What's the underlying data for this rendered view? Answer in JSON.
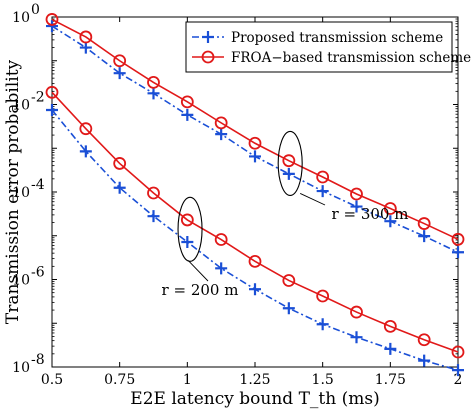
{
  "chart_data": {
    "type": "line",
    "xlabel": "E2E latency bound T_th (ms)",
    "ylabel": "Transmission error probability",
    "xlim": [
      0.5,
      2
    ],
    "ylim": [
      1e-08,
      1
    ],
    "yscale": "log",
    "grid": false,
    "legend_position": "top-right",
    "x_ticks": [
      "0.5",
      "0.75",
      "1",
      "1.25",
      "1.5",
      "1.75",
      "2"
    ],
    "y_ticks": [
      {
        "base": "10",
        "exp": "0"
      },
      {
        "base": "10",
        "exp": "-2"
      },
      {
        "base": "10",
        "exp": "-4"
      },
      {
        "base": "10",
        "exp": "-6"
      },
      {
        "base": "10",
        "exp": "-8"
      }
    ],
    "x": [
      0.5,
      0.625,
      0.75,
      0.875,
      1.0,
      1.125,
      1.25,
      1.375,
      1.5,
      1.625,
      1.75,
      1.875,
      2.0
    ],
    "series": [
      {
        "name": "Proposed transmission scheme",
        "group": "r = 300 m",
        "style": "proposed",
        "color": "#1a4fd6",
        "values": [
          0.62,
          0.2,
          0.052,
          0.018,
          0.0058,
          0.0021,
          0.00065,
          0.00026,
          0.000105,
          4.65e-05,
          2.15e-05,
          9.8e-06,
          4.2e-06
        ]
      },
      {
        "name": "FROA−based transmission scheme",
        "group": "r = 300 m",
        "style": "froa",
        "color": "#e11919",
        "values": [
          0.88,
          0.35,
          0.1,
          0.032,
          0.0115,
          0.0038,
          0.0013,
          0.00052,
          0.00022,
          9e-05,
          4.2e-05,
          1.9e-05,
          8.3e-06
        ]
      },
      {
        "name": "Proposed transmission scheme",
        "group": "r = 200 m",
        "style": "proposed",
        "color": "#1a4fd6",
        "values": [
          0.0075,
          0.00085,
          0.000125,
          2.8e-05,
          7.2e-06,
          1.8e-06,
          6e-07,
          2.2e-07,
          9.5e-08,
          4.8e-08,
          2.6e-08,
          1.4e-08,
          8.5e-09
        ]
      },
      {
        "name": "FROA−based transmission scheme",
        "group": "r = 200 m",
        "style": "froa",
        "color": "#e11919",
        "values": [
          0.019,
          0.0028,
          0.00045,
          9.5e-05,
          2.3e-05,
          8.2e-06,
          2.6e-06,
          9.5e-07,
          4.2e-07,
          1.8e-07,
          8.5e-08,
          4.2e-08,
          2.2e-08
        ]
      }
    ],
    "legend": [
      {
        "label": "Proposed transmission scheme",
        "style": "proposed",
        "color": "#1a4fd6"
      },
      {
        "label": "FROA−based transmission scheme",
        "style": "froa",
        "color": "#e11919"
      }
    ],
    "annotations": [
      {
        "text": "r = 300 m",
        "group": "r = 300 m",
        "ellipse_x": 1.38,
        "ellipse_y": 0.00045
      },
      {
        "text": "r = 200 m",
        "group": "r = 200 m",
        "ellipse_x": 1.01,
        "ellipse_y": 1.4e-05
      }
    ]
  }
}
